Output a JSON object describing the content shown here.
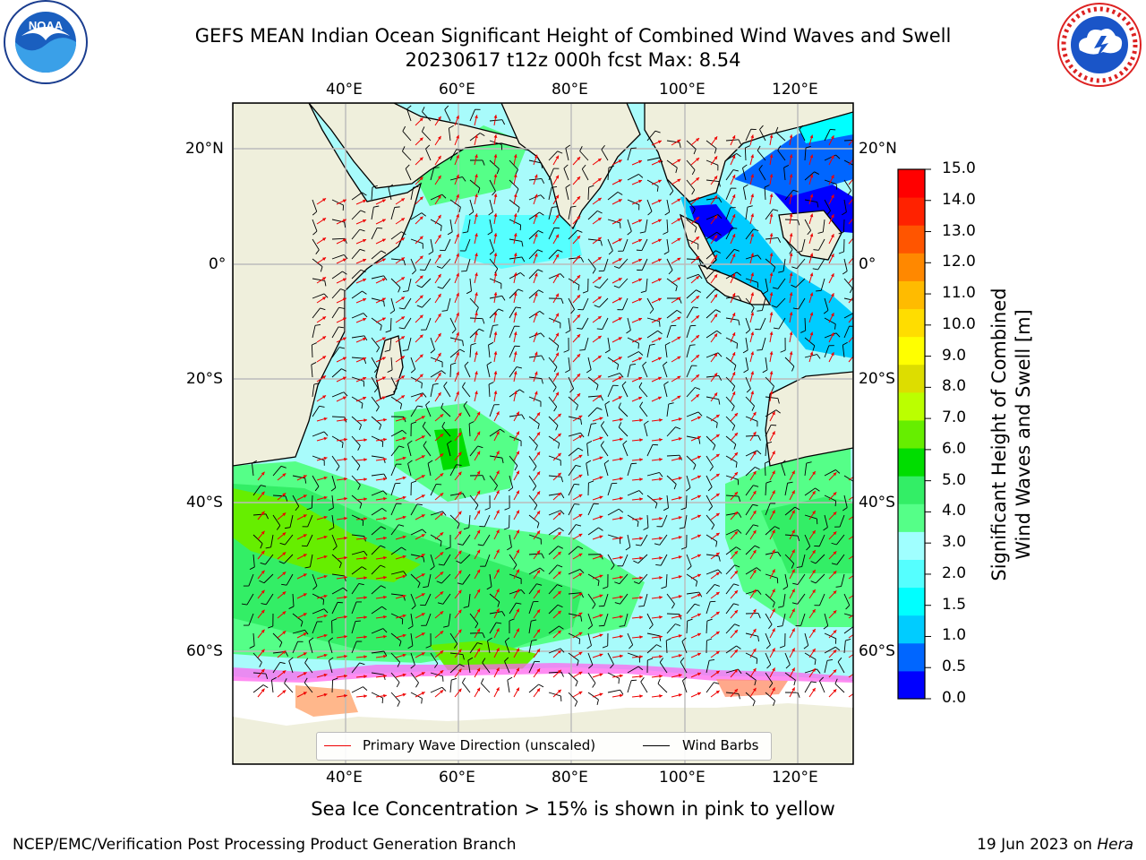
{
  "title": {
    "line1": "GEFS MEAN Indian Ocean Significant Height of Combined Wind Waves and Swell",
    "line2": "20230617 t12z 000h fcst   Max: 8.54"
  },
  "logos": {
    "left": {
      "icon": "noaa-logo",
      "text": "NOAA"
    },
    "right": {
      "icon": "nws-logo"
    }
  },
  "axes": {
    "lon_labels": [
      "40°E",
      "60°E",
      "80°E",
      "100°E",
      "120°E"
    ],
    "lat_labels": [
      "20°N",
      "0°",
      "20°S",
      "40°S",
      "60°S"
    ]
  },
  "colorbar": {
    "label_line1": "Significant Height of Combined",
    "label_line2": "Wind Waves and Swell [m]",
    "ticks": [
      "0.0",
      "0.5",
      "1.0",
      "1.5",
      "2.0",
      "3.0",
      "4.0",
      "5.0",
      "6.0",
      "7.0",
      "8.0",
      "9.0",
      "10.0",
      "11.0",
      "12.0",
      "13.0",
      "14.0",
      "15.0"
    ],
    "colors": [
      "#0000ff",
      "#0066ff",
      "#00ccff",
      "#00ffff",
      "#55ffff",
      "#a0ffff",
      "#55ff88",
      "#33ee66",
      "#00dd00",
      "#66ee00",
      "#bbff00",
      "#dddd00",
      "#ffff00",
      "#ffdd00",
      "#ffbb00",
      "#ff8800",
      "#ff5500",
      "#ff2200",
      "#ff0000"
    ]
  },
  "map_colors": {
    "land": "#efefdc",
    "ocean_base": "#a8fbfb",
    "ice": "#ffffff",
    "wave_arrow": "#ee0000",
    "barb": "#000000",
    "grid": "#bbbbbb"
  },
  "legend": {
    "primary_wave": "Primary Wave Direction (unscaled)",
    "wind_barbs": "Wind Barbs"
  },
  "caption": "Sea Ice Concentration > 15% is shown in pink to yellow",
  "footer": {
    "left": "NCEP/EMC/Verification Post Processing Product Generation Branch",
    "right_prefix": "19 Jun 2023 on ",
    "right_host": "Hera"
  }
}
